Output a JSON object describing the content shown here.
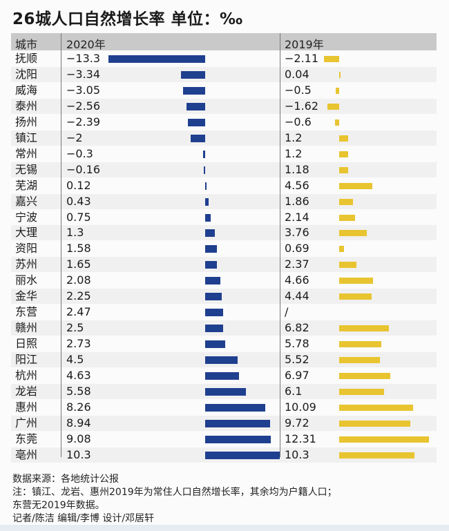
{
  "title": "26城人口自然增长率 单位：‰",
  "header": {
    "city": "城市",
    "y2020": "2020年",
    "y2019": "2019年"
  },
  "colors": {
    "bar_2020": "#1f3f8f",
    "bar_2019": "#e8c430"
  },
  "chart_data": {
    "type": "bar",
    "title": "26城人口自然增长率 单位：‰",
    "categories": [
      "抚顺",
      "沈阳",
      "威海",
      "泰州",
      "扬州",
      "镇江",
      "常州",
      "无锡",
      "芜湖",
      "嘉兴",
      "宁波",
      "大理",
      "资阳",
      "苏州",
      "丽水",
      "金华",
      "东营",
      "赣州",
      "日照",
      "阳江",
      "杭州",
      "龙岩",
      "惠州",
      "广州",
      "东莞",
      "亳州"
    ],
    "series": [
      {
        "name": "2020年",
        "values": [
          -13.3,
          -3.34,
          -3.05,
          -2.56,
          -2.39,
          -2,
          -0.3,
          -0.16,
          0.12,
          0.43,
          0.75,
          1.3,
          1.58,
          1.65,
          2.08,
          2.25,
          2.47,
          2.5,
          2.73,
          4.5,
          4.63,
          5.58,
          8.26,
          8.94,
          9.08,
          10.3
        ]
      },
      {
        "name": "2019年",
        "values": [
          -2.11,
          0.04,
          -0.5,
          -1.62,
          -0.6,
          1.2,
          1.2,
          1.18,
          4.56,
          1.86,
          2.14,
          3.76,
          0.69,
          2.37,
          4.66,
          4.44,
          null,
          6.82,
          5.78,
          5.52,
          6.97,
          6.1,
          10.09,
          9.72,
          12.31,
          10.3
        ]
      }
    ],
    "labels_2020": [
      "−13.3",
      "−3.34",
      "−3.05",
      "−2.56",
      "−2.39",
      "−2",
      "−0.3",
      "−0.16",
      "0.12",
      "0.43",
      "0.75",
      "1.3",
      "1.58",
      "1.65",
      "2.08",
      "2.25",
      "2.47",
      "2.5",
      "2.73",
      "4.5",
      "4.63",
      "5.58",
      "8.26",
      "8.94",
      "9.08",
      "10.3"
    ],
    "labels_2019": [
      "−2.11",
      "0.04",
      "−0.5",
      "−1.62",
      "−0.6",
      "1.2",
      "1.2",
      "1.18",
      "4.56",
      "1.86",
      "2.14",
      "3.76",
      "0.69",
      "2.37",
      "4.66",
      "4.44",
      "/",
      "6.82",
      "5.78",
      "5.52",
      "6.97",
      "6.1",
      "10.09",
      "9.72",
      "12.31",
      "10.3"
    ]
  },
  "footer": {
    "source": "数据来源：各地统计公报",
    "note1": "注：镇江、龙岩、惠州2019年为常住人口自然增长率，其余均为户籍人口；",
    "note2": "东营无2019年数据。",
    "credits": "记者/陈洁    编辑/李博    设计/邓居轩"
  }
}
